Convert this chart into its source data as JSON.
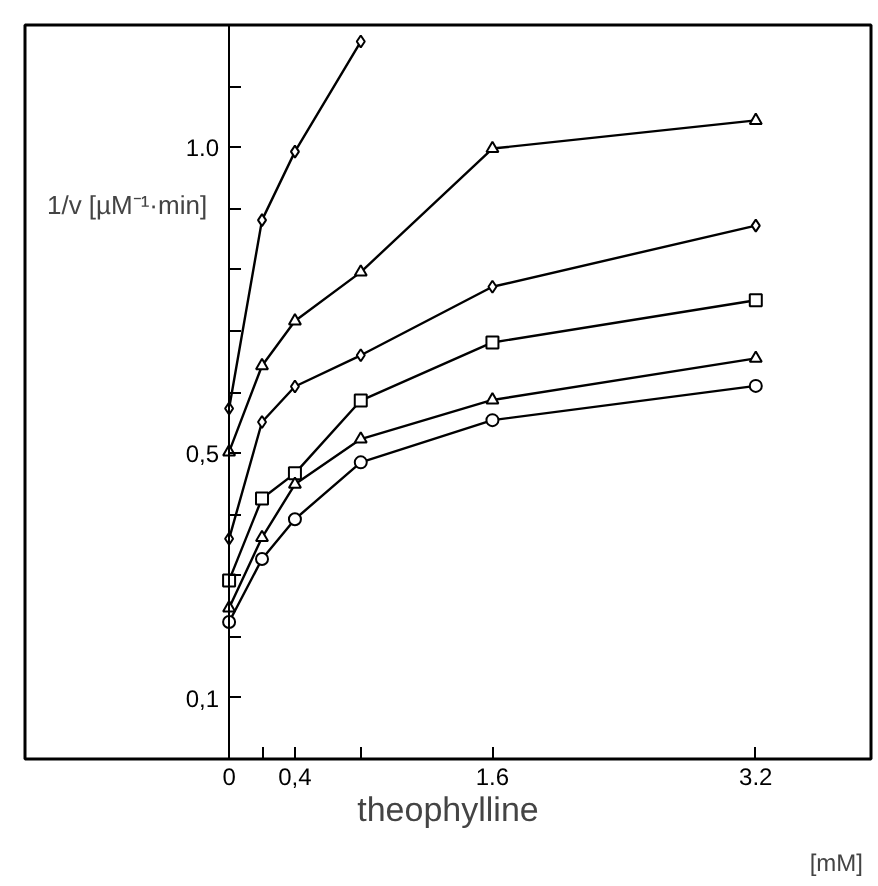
{
  "chart_data": {
    "type": "line",
    "xlabel": "theophylline",
    "ylabel": "1/v [µM⁻¹·min]",
    "annotations": [
      "[mM]"
    ],
    "x": [
      0,
      0.2,
      0.4,
      0.8,
      1.6,
      3.2
    ],
    "xlim": [
      -1.24,
      3.9
    ],
    "ylim": [
      0,
      1.2
    ],
    "xticks": [
      0,
      {
        "value": 0.2,
        "label": null
      },
      {
        "value": 0.4,
        "label": "0,4"
      },
      {
        "value": 0.8,
        "label": null
      },
      1.6,
      3.2
    ],
    "yticks": [
      {
        "value": 0.1,
        "label": "0,1"
      },
      {
        "value": 0.2,
        "label": null
      },
      {
        "value": 0.3,
        "label": null
      },
      {
        "value": 0.4,
        "label": null
      },
      {
        "value": 0.5,
        "label": "0,5"
      },
      {
        "value": 0.6,
        "label": null
      },
      {
        "value": 0.7,
        "label": null
      },
      {
        "value": 0.8,
        "label": null
      },
      {
        "value": 0.9,
        "label": null
      },
      {
        "value": 1.0,
        "label": "1.0"
      },
      {
        "value": 1.1,
        "label": null
      }
    ],
    "grid": false,
    "line_style": "solid",
    "series": [
      {
        "color": "#000000",
        "marker": "diamond",
        "x": [
          0,
          0.2,
          0.4,
          0.8
        ],
        "values": [
          0.573,
          0.881,
          0.993,
          1.173
        ]
      },
      {
        "color": "#000000",
        "marker": "triangle",
        "values": [
          0.502,
          0.643,
          0.716,
          0.796,
          0.998,
          1.044
        ]
      },
      {
        "color": "#000000",
        "marker": "diamond",
        "values": [
          0.36,
          0.551,
          0.609,
          0.66,
          0.772,
          0.872
        ]
      },
      {
        "color": "#000000",
        "marker": "square",
        "values": [
          0.292,
          0.426,
          0.467,
          0.586,
          0.681,
          0.75
        ]
      },
      {
        "color": "#000000",
        "marker": "triangle",
        "values": [
          0.247,
          0.362,
          0.449,
          0.523,
          0.587,
          0.655
        ]
      },
      {
        "color": "#000000",
        "marker": "circle",
        "values": [
          0.224,
          0.327,
          0.392,
          0.485,
          0.554,
          0.61
        ]
      }
    ]
  }
}
